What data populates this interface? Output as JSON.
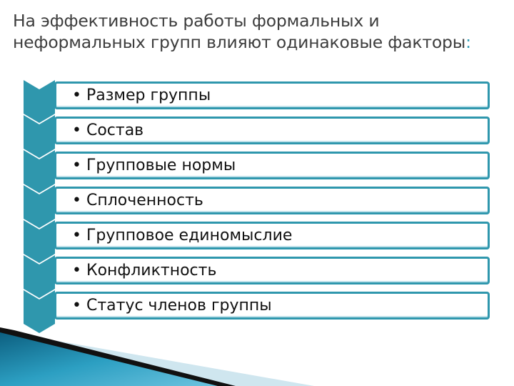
{
  "title": {
    "text": "На эффективность работы формальных и неформальных групп влияют одинаковые факторы",
    "colon": ":"
  },
  "items": [
    {
      "label": "• Размер группы"
    },
    {
      "label": "• Состав"
    },
    {
      "label": "• Групповые нормы"
    },
    {
      "label": "• Сплоченность"
    },
    {
      "label": "• Групповое единомыслие"
    },
    {
      "label": "• Конфликтность"
    },
    {
      "label": "• Статус членов группы"
    }
  ],
  "colors": {
    "accent": "#2f97ad",
    "title": "#3d3d3d"
  }
}
